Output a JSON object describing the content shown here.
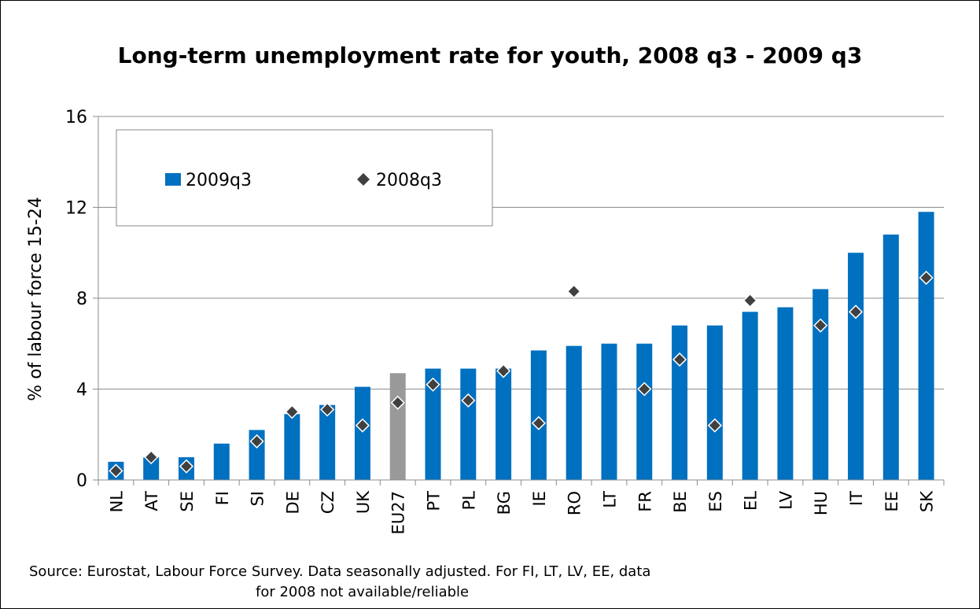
{
  "chart_data": {
    "type": "bar",
    "title": "Long-term unemployment rate for youth, 2008 q3 - 2009 q3",
    "xlabel": "",
    "ylabel": "% of labour force 15-24",
    "ylim": [
      0,
      16
    ],
    "yticks": [
      0,
      4,
      8,
      12,
      16
    ],
    "grid": true,
    "legend_position": "top-left",
    "categories": [
      "NL",
      "AT",
      "SE",
      "FI",
      "SI",
      "DE",
      "CZ",
      "UK",
      "EU27",
      "PT",
      "PL",
      "BG",
      "IE",
      "RO",
      "LT",
      "FR",
      "BE",
      "ES",
      "EL",
      "LV",
      "HU",
      "IT",
      "EE",
      "SK"
    ],
    "highlight_category": "EU27",
    "series": [
      {
        "name": "2009q3",
        "kind": "bar",
        "color": "#0070C0",
        "values": [
          0.8,
          1.0,
          1.0,
          1.6,
          2.2,
          2.9,
          3.3,
          4.1,
          4.7,
          4.9,
          4.9,
          4.9,
          5.7,
          5.9,
          6.0,
          6.0,
          6.8,
          6.8,
          7.4,
          7.6,
          8.4,
          10.0,
          10.8,
          11.8
        ]
      },
      {
        "name": "2008q3",
        "kind": "marker",
        "color": "#404040",
        "values": [
          0.4,
          1.0,
          0.6,
          null,
          1.7,
          3.0,
          3.1,
          2.4,
          3.4,
          4.2,
          3.5,
          4.8,
          2.5,
          8.3,
          null,
          4.0,
          5.3,
          2.4,
          7.9,
          null,
          6.8,
          7.4,
          null,
          8.9
        ]
      }
    ],
    "highlight_color": "#999999"
  },
  "source_note": {
    "line1": "Source: Eurostat, Labour Force Survey. Data seasonally adjusted. For FI, LT, LV, EE, data",
    "line2": "for 2008 not available/reliable"
  }
}
